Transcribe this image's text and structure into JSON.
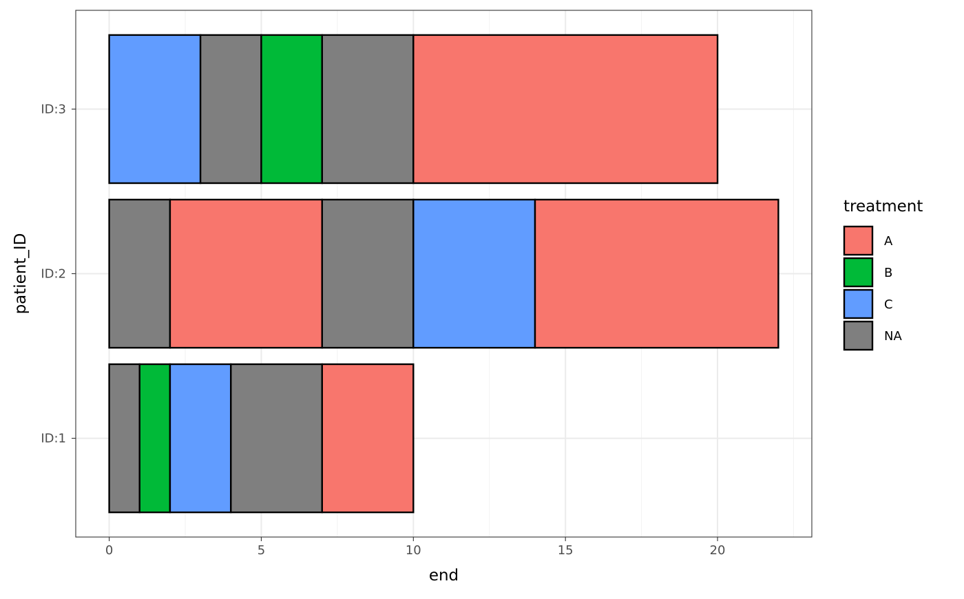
{
  "chart_data": {
    "type": "bar",
    "orientation": "horizontal",
    "stacked": true,
    "xlabel": "end",
    "ylabel": "patient_ID",
    "xlim": [
      -1.1,
      23.1
    ],
    "x_ticks": [
      0,
      5,
      10,
      15,
      20
    ],
    "categories": [
      "ID:1",
      "ID:2",
      "ID:3"
    ],
    "grid": true,
    "legend": {
      "title": "treatment",
      "placement": "right",
      "entries": [
        {
          "label": "A",
          "color": "#F8766D"
        },
        {
          "label": "B",
          "color": "#00BA38"
        },
        {
          "label": "C",
          "color": "#619CFF"
        },
        {
          "label": "NA",
          "color": "#7F7F7F"
        }
      ]
    },
    "segments": [
      {
        "patient": "ID:1",
        "start": 0,
        "end": 1,
        "treatment": "NA"
      },
      {
        "patient": "ID:1",
        "start": 1,
        "end": 2,
        "treatment": "B"
      },
      {
        "patient": "ID:1",
        "start": 2,
        "end": 4,
        "treatment": "C"
      },
      {
        "patient": "ID:1",
        "start": 4,
        "end": 7,
        "treatment": "NA"
      },
      {
        "patient": "ID:1",
        "start": 7,
        "end": 10,
        "treatment": "A"
      },
      {
        "patient": "ID:2",
        "start": 0,
        "end": 2,
        "treatment": "NA"
      },
      {
        "patient": "ID:2",
        "start": 2,
        "end": 7,
        "treatment": "A"
      },
      {
        "patient": "ID:2",
        "start": 7,
        "end": 10,
        "treatment": "NA"
      },
      {
        "patient": "ID:2",
        "start": 10,
        "end": 14,
        "treatment": "C"
      },
      {
        "patient": "ID:2",
        "start": 14,
        "end": 22,
        "treatment": "A"
      },
      {
        "patient": "ID:3",
        "start": 0,
        "end": 3,
        "treatment": "C"
      },
      {
        "patient": "ID:3",
        "start": 3,
        "end": 5,
        "treatment": "NA"
      },
      {
        "patient": "ID:3",
        "start": 5,
        "end": 7,
        "treatment": "B"
      },
      {
        "patient": "ID:3",
        "start": 7,
        "end": 10,
        "treatment": "NA"
      },
      {
        "patient": "ID:3",
        "start": 10,
        "end": 20,
        "treatment": "A"
      }
    ]
  }
}
